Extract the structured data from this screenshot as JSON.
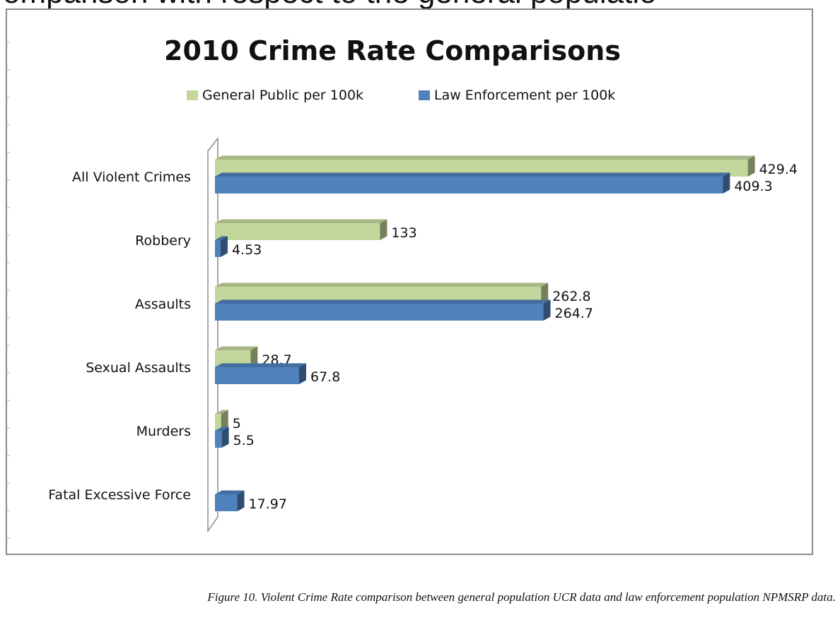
{
  "page": {
    "heading_fragment": "omparison with respect to the general populatio",
    "caption": "Figure 10. Violent Crime Rate comparison between general population UCR data and law enforcement population NPMSRP data."
  },
  "colors": {
    "general_public": "#c3d69b",
    "law_enforcement": "#4f81bd"
  },
  "chart_data": {
    "type": "bar",
    "orientation": "horizontal",
    "style": "3d",
    "title": "2010 Crime Rate Comparisons",
    "xlabel": "",
    "ylabel": "",
    "legend_position": "top",
    "categories": [
      "All Violent Crimes",
      "Robbery",
      "Assaults",
      "Sexual Assaults",
      "Murders",
      "Fatal Excessive Force"
    ],
    "series": [
      {
        "name": "General Public per 100k",
        "values": [
          429.4,
          133,
          262.8,
          28.7,
          5,
          null
        ],
        "labels": [
          "429.4",
          "133",
          "262.8",
          "28.7",
          "5",
          ""
        ]
      },
      {
        "name": "Law Enforcement per 100k",
        "values": [
          409.3,
          4.53,
          264.7,
          67.8,
          5.5,
          17.97
        ],
        "labels": [
          "409.3",
          "4.53",
          "264.7",
          "67.8",
          "5.5",
          "17.97"
        ]
      }
    ],
    "xlim": [
      0,
      450
    ],
    "grid": false
  }
}
